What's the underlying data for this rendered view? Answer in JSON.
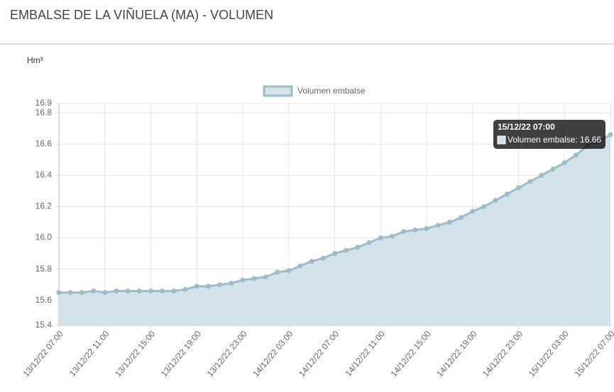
{
  "page_title": "EMBALSE DE LA VIÑUELA (MA) - VOLUMEN",
  "chart_data": {
    "type": "line",
    "y_axis_label": "Hm³",
    "categories": [
      "13/12/22 07:00",
      null,
      null,
      null,
      "13/12/22 11:00",
      null,
      null,
      null,
      "13/12/22 15:00",
      null,
      null,
      null,
      "13/12/22 19:00",
      null,
      null,
      null,
      "13/12/22 23:00",
      null,
      null,
      null,
      "14/12/22 03:00",
      null,
      null,
      null,
      "14/12/22 07:00",
      null,
      null,
      null,
      "14/12/22 11:00",
      null,
      null,
      null,
      "14/12/22 15:00",
      null,
      null,
      null,
      "14/12/22 19:00",
      null,
      null,
      null,
      "14/12/22 23:00",
      null,
      null,
      null,
      "15/12/22 03:00",
      null,
      null,
      null,
      "15/12/22 07:00"
    ],
    "series": [
      {
        "name": "Volumen embalse",
        "color": "#9dbccb",
        "fill": "#d4e3ea",
        "values": [
          15.65,
          15.65,
          15.65,
          15.66,
          15.65,
          15.66,
          15.66,
          15.66,
          15.66,
          15.66,
          15.66,
          15.67,
          15.69,
          15.69,
          15.7,
          15.71,
          15.73,
          15.74,
          15.75,
          15.78,
          15.79,
          15.82,
          15.85,
          15.87,
          15.9,
          15.92,
          15.94,
          15.97,
          16.0,
          16.01,
          16.04,
          16.05,
          16.06,
          16.08,
          16.1,
          16.13,
          16.17,
          16.2,
          16.24,
          16.28,
          16.32,
          16.36,
          16.4,
          16.44,
          16.48,
          16.53,
          16.59,
          16.62,
          16.66
        ]
      }
    ],
    "ylim": [
      15.44,
      16.86
    ],
    "yticks": [
      {
        "value": 15.44,
        "label": "15.4"
      },
      15.6,
      {
        "value": 15.8,
        "label": "15.8"
      },
      {
        "value": 16.0,
        "label": "16.0"
      },
      {
        "value": 16.2,
        "label": "16.2"
      },
      {
        "value": 16.4,
        "label": "16.4"
      },
      {
        "value": 16.6,
        "label": "16.6"
      },
      {
        "value": 16.8,
        "label": "16.8"
      },
      {
        "value": 16.86,
        "label": "16.9"
      }
    ],
    "grid": true,
    "legend": "top",
    "tooltip": {
      "title": "15/12/22 07:00",
      "label": "Volumen embalse: 16.66"
    }
  }
}
